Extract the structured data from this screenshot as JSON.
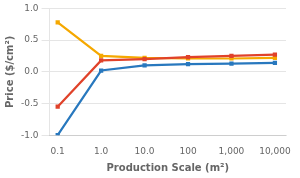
{
  "chart_data": {
    "type": "line",
    "log": "x",
    "grid": "y",
    "marker": "square",
    "x": [
      0.1,
      1.0,
      10.0,
      100.0,
      1000.0,
      10000.0
    ],
    "series": [
      {
        "color": "#2878BE",
        "values": [
          -1.0,
          0.02,
          0.1,
          0.12,
          0.13,
          0.14
        ]
      },
      {
        "color": "#E0422A",
        "values": [
          -0.55,
          0.18,
          0.2,
          0.23,
          0.25,
          0.27
        ]
      },
      {
        "color": "#F5A800",
        "values": [
          0.78,
          0.25,
          0.22,
          0.21,
          0.21,
          0.22
        ]
      }
    ],
    "xlabel": "Production Scale (m²)",
    "ylabel": "Price ($/cm²)",
    "xlim": [
      0.065,
      18000
    ],
    "ylim": [
      -1.0,
      1.0
    ],
    "xticks": [
      0.1,
      {
        "value": 1.0,
        "label": "1.0"
      },
      {
        "value": 10.0,
        "label": "10.0"
      },
      100,
      {
        "value": 1000,
        "label": "1,000"
      },
      {
        "value": 10000,
        "label": "10,000"
      }
    ],
    "yticks": [
      {
        "value": -1.0,
        "label": "-1.0"
      },
      -0.5,
      {
        "value": 0.0,
        "label": "0.0"
      },
      0.5,
      {
        "value": 1.0,
        "label": "1.0"
      }
    ]
  }
}
